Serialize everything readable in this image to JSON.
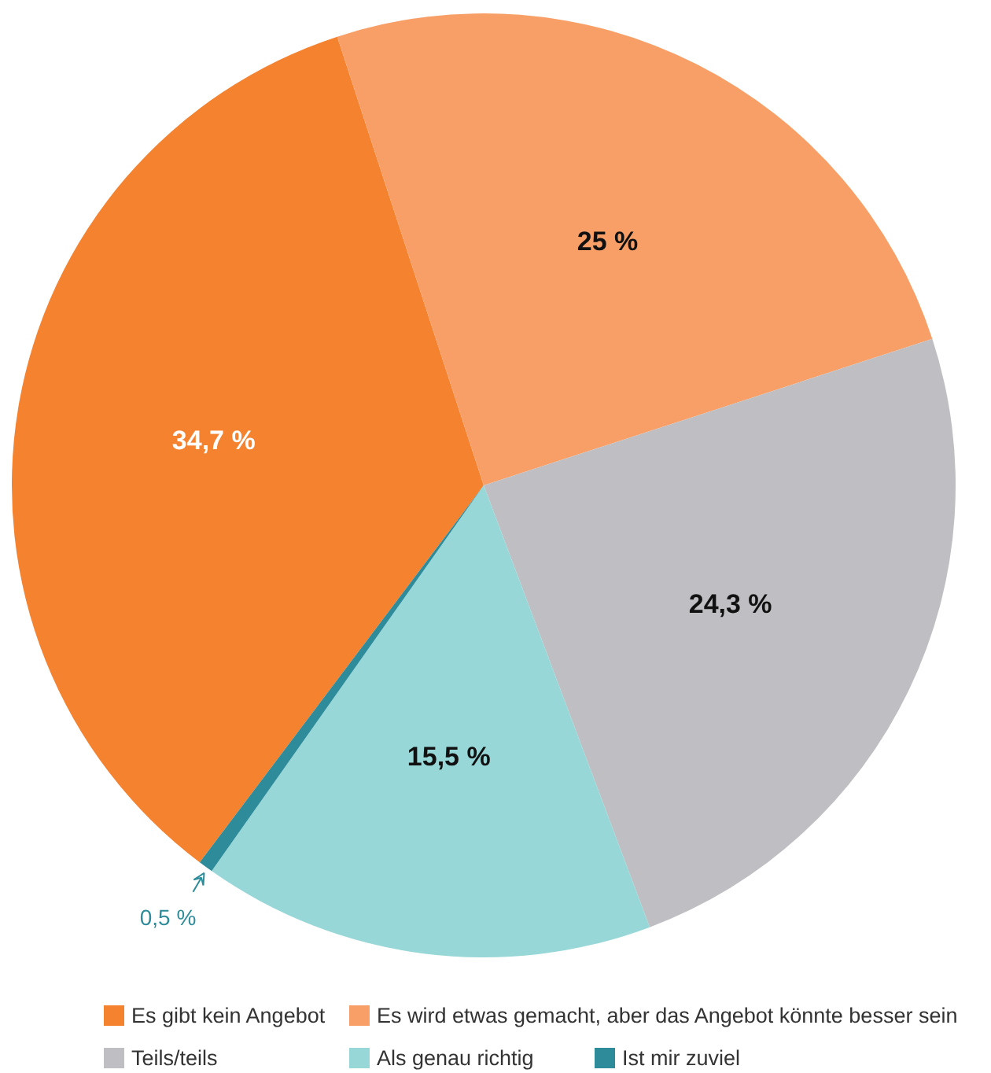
{
  "chart_data": {
    "type": "pie",
    "categories": [
      "Es gibt kein Angebot",
      "Es wird etwas gemacht, aber das Angebot könnte besser sein",
      "Teils/teils",
      "Als genau richtig",
      "Ist mir zuviel"
    ],
    "values": [
      34.7,
      25,
      24.3,
      15.5,
      0.5
    ],
    "colors": [
      "#f4822f",
      "#f89f67",
      "#bfbfc3",
      "#97d7d7",
      "#2e8b9a"
    ],
    "value_labels": [
      "34,7 %",
      "25 %",
      "24,3 %",
      "15,5 %",
      "0,5 %"
    ],
    "legend": "bottom"
  }
}
